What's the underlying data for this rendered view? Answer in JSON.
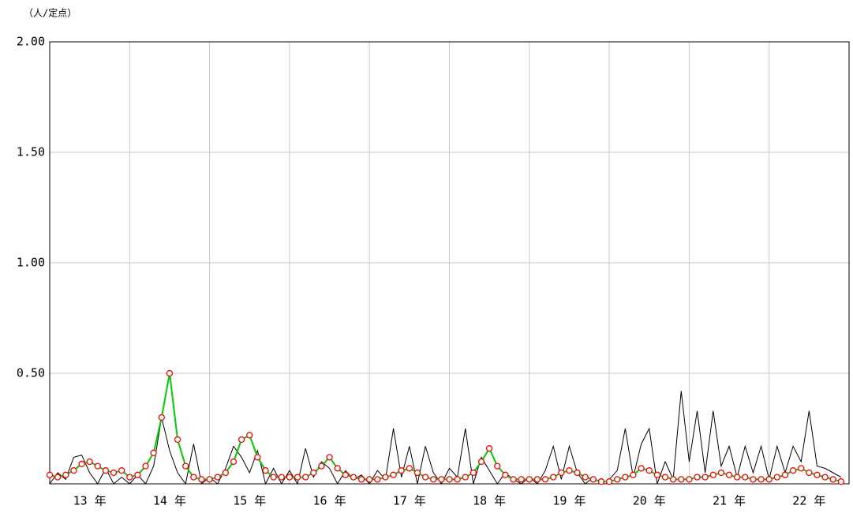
{
  "chart_data": {
    "type": "line",
    "unit_label": "（人/定点）",
    "xlim": [
      13,
      23
    ],
    "ylim": [
      0,
      2
    ],
    "yticks": [
      {
        "value": 0.5,
        "label": "0.50"
      },
      {
        "value": 1,
        "label": "1.00"
      },
      {
        "value": 1.5,
        "label": "1.50"
      },
      {
        "value": 2,
        "label": "2.00"
      }
    ],
    "xticks": [
      {
        "value": 13.5,
        "label": "13 年"
      },
      {
        "value": 14.5,
        "label": "14 年"
      },
      {
        "value": 15.5,
        "label": "15 年"
      },
      {
        "value": 16.5,
        "label": "16 年"
      },
      {
        "value": 17.5,
        "label": "17 年"
      },
      {
        "value": 18.5,
        "label": "18 年"
      },
      {
        "value": 19.5,
        "label": "19 年"
      },
      {
        "value": 20.5,
        "label": "20 年"
      },
      {
        "value": 21.5,
        "label": "21 年"
      },
      {
        "value": 22.5,
        "label": "22 年"
      }
    ],
    "grid": true,
    "x": [
      13.0,
      13.1,
      13.2,
      13.3,
      13.4,
      13.5,
      13.6,
      13.7,
      13.8,
      13.9,
      14.0,
      14.1,
      14.2,
      14.3,
      14.4,
      14.5,
      14.6,
      14.7,
      14.8,
      14.9,
      15.0,
      15.1,
      15.2,
      15.3,
      15.4,
      15.5,
      15.6,
      15.7,
      15.8,
      15.9,
      16.0,
      16.1,
      16.2,
      16.3,
      16.4,
      16.5,
      16.6,
      16.7,
      16.8,
      16.9,
      17.0,
      17.1,
      17.2,
      17.3,
      17.4,
      17.5,
      17.6,
      17.7,
      17.8,
      17.9,
      18.0,
      18.1,
      18.2,
      18.3,
      18.4,
      18.5,
      18.6,
      18.7,
      18.8,
      18.9,
      19.0,
      19.1,
      19.2,
      19.3,
      19.4,
      19.5,
      19.6,
      19.7,
      19.8,
      19.9,
      20.0,
      20.1,
      20.2,
      20.3,
      20.4,
      20.5,
      20.6,
      20.7,
      20.8,
      20.9,
      21.0,
      21.1,
      21.2,
      21.3,
      21.4,
      21.5,
      21.6,
      21.7,
      21.8,
      21.9,
      22.0,
      22.1,
      22.2,
      22.3,
      22.4,
      22.5,
      22.6,
      22.7,
      22.8,
      22.9
    ],
    "series": [
      {
        "color": "#000000",
        "values": [
          0,
          0.05,
          0.02,
          0.12,
          0.13,
          0.05,
          0,
          0.07,
          0,
          0.03,
          0,
          0.04,
          0,
          0.08,
          0.3,
          0.15,
          0.05,
          0,
          0.18,
          0,
          0.03,
          0,
          0.07,
          0.17,
          0.12,
          0.05,
          0.15,
          0,
          0.07,
          0,
          0.06,
          0,
          0.16,
          0.03,
          0.1,
          0.07,
          0,
          0.06,
          0.02,
          0.04,
          0,
          0.06,
          0.02,
          0.25,
          0.03,
          0.17,
          0,
          0.17,
          0.05,
          0,
          0.07,
          0.03,
          0.25,
          0,
          0.12,
          0.06,
          0,
          0.05,
          0.02,
          0,
          0.03,
          0,
          0.06,
          0.17,
          0.02,
          0.17,
          0.05,
          0,
          0.03,
          0,
          0.02,
          0.06,
          0.25,
          0.03,
          0.18,
          0.25,
          0,
          0.1,
          0.02,
          0.42,
          0.1,
          0.33,
          0.05,
          0.33,
          0.08,
          0.17,
          0.03,
          0.17,
          0.05,
          0.17,
          0.02,
          0.17,
          0.05,
          0.17,
          0.1,
          0.33,
          0.08,
          0.07,
          0.05,
          0.03
        ]
      },
      {
        "color": "#00cc00",
        "marker_color": "#ff0000",
        "values": [
          0.04,
          0.03,
          0.04,
          0.06,
          0.09,
          0.1,
          0.08,
          0.06,
          0.05,
          0.06,
          0.03,
          0.04,
          0.08,
          0.14,
          0.3,
          0.5,
          0.2,
          0.08,
          0.03,
          0.02,
          0.02,
          0.03,
          0.05,
          0.1,
          0.2,
          0.22,
          0.12,
          0.06,
          0.03,
          0.03,
          0.03,
          0.03,
          0.03,
          0.05,
          0.08,
          0.12,
          0.07,
          0.04,
          0.03,
          0.02,
          0.02,
          0.02,
          0.03,
          0.04,
          0.06,
          0.07,
          0.05,
          0.03,
          0.02,
          0.02,
          0.02,
          0.02,
          0.03,
          0.05,
          0.1,
          0.16,
          0.08,
          0.04,
          0.02,
          0.02,
          0.02,
          0.02,
          0.02,
          0.03,
          0.05,
          0.06,
          0.05,
          0.03,
          0.02,
          0.01,
          0.01,
          0.02,
          0.03,
          0.04,
          0.07,
          0.06,
          0.04,
          0.03,
          0.02,
          0.02,
          0.02,
          0.03,
          0.03,
          0.04,
          0.05,
          0.04,
          0.03,
          0.03,
          0.02,
          0.02,
          0.02,
          0.03,
          0.04,
          0.06,
          0.07,
          0.05,
          0.04,
          0.03,
          0.02,
          0.01
        ]
      }
    ]
  }
}
